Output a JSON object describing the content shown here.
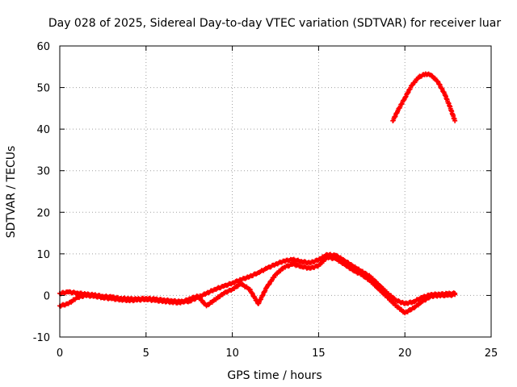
{
  "chart_data": {
    "type": "scatter",
    "title": "Day 028 of 2025, Sidereal Day-to-day VTEC variation (SDTVAR) for receiver luar",
    "xlabel": "GPS time / hours",
    "ylabel": "SDTVAR / TECUs",
    "xlim": [
      0,
      25
    ],
    "ylim": [
      -10,
      60
    ],
    "xticks": [
      0,
      5,
      10,
      15,
      20,
      25
    ],
    "yticks": [
      -10,
      0,
      10,
      20,
      30,
      40,
      50,
      60
    ],
    "grid": true,
    "marker_color": "#ff0000",
    "series": [
      {
        "name": "main-band-upper",
        "x": [
          0.0,
          0.5,
          1.0,
          1.5,
          2.0,
          2.5,
          3.0,
          3.5,
          4.0,
          4.5,
          5.0,
          5.5,
          6.0,
          6.5,
          7.0,
          7.5,
          8.0,
          8.5,
          9.0,
          9.5,
          10.0,
          10.5,
          11.0,
          11.5,
          12.0,
          12.5,
          13.0,
          13.5,
          14.0,
          14.5,
          15.0,
          15.5,
          16.0,
          16.5,
          17.0,
          17.5,
          18.0,
          18.5,
          19.0,
          19.5,
          20.0,
          20.5,
          21.0,
          21.5,
          22.0,
          22.5,
          22.9
        ],
        "y": [
          0.5,
          0.8,
          0.6,
          0.3,
          0.1,
          -0.2,
          -0.4,
          -0.7,
          -0.8,
          -0.9,
          -0.7,
          -0.9,
          -1.1,
          -1.3,
          -1.5,
          -1.4,
          -0.5,
          0.5,
          1.5,
          2.2,
          3.0,
          3.8,
          4.5,
          5.5,
          6.5,
          7.5,
          8.3,
          8.6,
          8.2,
          7.8,
          8.6,
          9.8,
          9.6,
          8.4,
          7.0,
          5.8,
          4.5,
          2.5,
          0.5,
          -1.2,
          -2.0,
          -1.5,
          -0.5,
          0.2,
          0.3,
          0.4,
          0.5
        ]
      },
      {
        "name": "main-band-lower",
        "x": [
          0.0,
          0.5,
          1.0,
          1.5,
          2.0,
          2.5,
          3.0,
          3.5,
          4.0,
          4.5,
          5.0,
          5.5,
          6.0,
          6.5,
          7.0,
          7.5,
          8.0,
          8.5,
          9.0,
          9.5,
          10.0,
          10.5,
          11.0,
          11.5,
          12.0,
          12.5,
          13.0,
          13.5,
          14.0,
          14.5,
          15.0,
          15.5,
          16.0,
          16.5,
          17.0,
          17.5,
          18.0,
          18.5,
          19.0,
          19.5,
          20.0,
          20.5,
          21.0,
          21.5,
          22.0,
          22.5,
          22.9
        ],
        "y": [
          -2.5,
          -2.0,
          -0.5,
          0.0,
          -0.2,
          -0.5,
          -0.8,
          -1.0,
          -1.2,
          -1.1,
          -0.9,
          -1.2,
          -1.4,
          -1.6,
          -1.8,
          -0.8,
          -0.2,
          -2.5,
          -1.0,
          0.5,
          1.5,
          2.8,
          1.5,
          -2.0,
          2.0,
          5.0,
          6.8,
          7.5,
          7.0,
          6.5,
          7.2,
          9.2,
          8.8,
          7.5,
          6.0,
          5.0,
          3.5,
          1.5,
          -0.5,
          -2.5,
          -4.2,
          -3.0,
          -1.5,
          -0.2,
          0.0,
          0.0,
          0.2
        ]
      },
      {
        "name": "evening-arc",
        "x": [
          19.3,
          19.6,
          20.0,
          20.4,
          20.8,
          21.2,
          21.5,
          21.9,
          22.3,
          22.6,
          22.9
        ],
        "y": [
          42.0,
          44.5,
          47.5,
          50.5,
          52.5,
          53.3,
          53.0,
          51.5,
          48.5,
          45.5,
          42.0
        ]
      }
    ]
  }
}
